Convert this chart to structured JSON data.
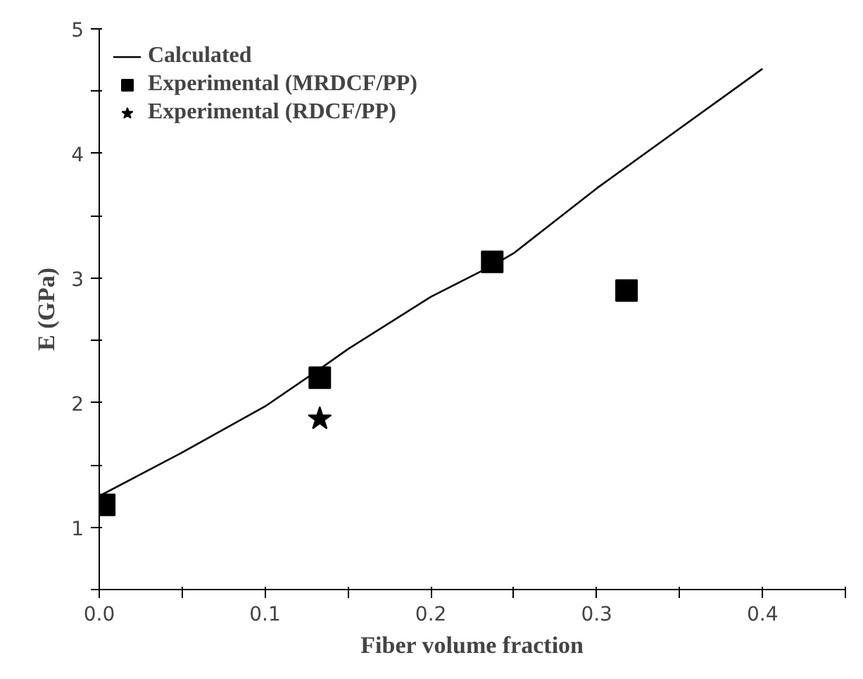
{
  "chart_data": {
    "type": "scatter",
    "xlabel": "Fiber volume fraction",
    "ylabel": "E (GPa)",
    "xlim": [
      0,
      0.45
    ],
    "ylim": [
      0.5,
      5
    ],
    "xticks": [
      {
        "value": 0,
        "label": "0.0"
      },
      {
        "value": 0.05,
        "label": null
      },
      0.1,
      {
        "value": 0.15,
        "label": null
      },
      0.2,
      {
        "value": 0.25,
        "label": null
      },
      0.3,
      {
        "value": 0.35,
        "label": null
      },
      0.4,
      {
        "value": 0.45,
        "label": null
      }
    ],
    "yticks": [
      {
        "value": 0.5,
        "label": null
      },
      1,
      {
        "value": 1.5,
        "label": null
      },
      2,
      {
        "value": 2.5,
        "label": null
      },
      3,
      {
        "value": 3.5,
        "label": null
      },
      4,
      {
        "value": 4.5,
        "label": null
      },
      5
    ],
    "grid": false,
    "legend": "top left",
    "series": [
      {
        "name": "Calculated",
        "type": "line",
        "color": "#000000",
        "marker": "none",
        "line_style": "solid",
        "x": [
          0,
          0.05,
          0.1,
          0.133,
          0.15,
          0.2,
          0.237,
          0.25,
          0.3,
          0.35,
          0.4
        ],
        "values": [
          1.25,
          1.6,
          1.97,
          2.27,
          2.43,
          2.85,
          3.1,
          3.2,
          3.72,
          4.2,
          4.68
        ]
      },
      {
        "name": "Experimental (MRDCF/PP)",
        "color": "#000000",
        "marker": "square",
        "x": [
          0.003,
          0.133,
          0.237,
          0.318
        ],
        "values": [
          1.18,
          2.2,
          3.13,
          2.9
        ]
      },
      {
        "name": "Experimental (RDCF/PP)",
        "color": "#000000",
        "marker": "star",
        "x": [
          0.133
        ],
        "values": [
          1.87
        ]
      }
    ]
  }
}
